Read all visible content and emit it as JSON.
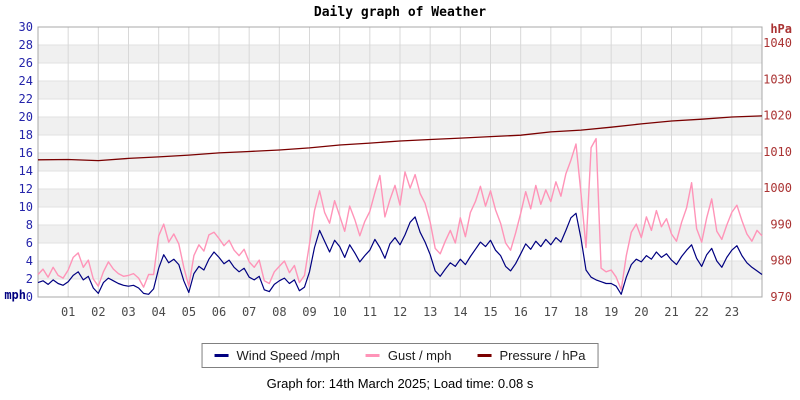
{
  "page": {
    "footer": "Graph for: 14th March 2025; Load time: 0.08 s"
  },
  "legend": {
    "items": [
      {
        "id": "wind-speed",
        "label": "Wind Speed /mph",
        "color": "#000080"
      },
      {
        "id": "gust",
        "label": "Gust / mph",
        "color": "#ff94b8"
      },
      {
        "id": "pressure",
        "label": "Pressure / hPa",
        "color": "#7a0000"
      }
    ]
  },
  "chart_data": {
    "type": "line",
    "title": "Daily graph of Weather",
    "xlabel": "",
    "x_range_hours": [
      0,
      24
    ],
    "x_tick_labels": [
      "01",
      "02",
      "03",
      "04",
      "05",
      "06",
      "07",
      "08",
      "09",
      "10",
      "11",
      "12",
      "13",
      "14",
      "15",
      "16",
      "17",
      "18",
      "19",
      "20",
      "21",
      "22",
      "23"
    ],
    "grid": true,
    "legend_position": "bottom",
    "y_left": {
      "unit": "mph",
      "lim": [
        0,
        30
      ],
      "ticks": [
        0,
        2,
        4,
        6,
        8,
        10,
        12,
        14,
        16,
        18,
        20,
        22,
        24,
        26,
        28,
        30
      ],
      "tick_color": "#2424aa"
    },
    "y_right": {
      "unit": "hPa",
      "lim": [
        970,
        1040
      ],
      "ticks": [
        970,
        980,
        990,
        1000,
        1010,
        1020,
        1030,
        1040
      ],
      "tick_color": "#aa3333"
    },
    "series": [
      {
        "name": "Wind Speed /mph",
        "axis": "left",
        "color": "#000080",
        "interval_minutes": 10,
        "values": [
          1.6,
          1.8,
          1.4,
          1.9,
          1.5,
          1.3,
          1.7,
          2.4,
          2.8,
          1.9,
          2.3,
          1.0,
          0.4,
          1.6,
          2.1,
          1.8,
          1.5,
          1.3,
          1.2,
          1.3,
          1.0,
          0.4,
          0.3,
          0.9,
          3.2,
          4.7,
          3.8,
          4.2,
          3.6,
          1.8,
          0.5,
          2.6,
          3.4,
          3.0,
          4.2,
          5.0,
          4.4,
          3.7,
          4.1,
          3.3,
          2.8,
          3.2,
          2.2,
          1.9,
          2.3,
          0.8,
          0.6,
          1.4,
          1.8,
          2.1,
          1.5,
          1.9,
          0.7,
          1.1,
          2.8,
          5.5,
          7.4,
          6.2,
          5.0,
          6.3,
          5.6,
          4.4,
          5.8,
          4.9,
          3.9,
          4.6,
          5.2,
          6.4,
          5.5,
          4.3,
          5.9,
          6.6,
          5.8,
          6.9,
          8.3,
          8.9,
          7.2,
          6.1,
          4.7,
          2.9,
          2.3,
          3.1,
          3.8,
          3.4,
          4.2,
          3.6,
          4.5,
          5.3,
          6.1,
          5.6,
          6.3,
          5.2,
          4.6,
          3.4,
          2.9,
          3.7,
          4.8,
          5.9,
          5.3,
          6.2,
          5.6,
          6.4,
          5.8,
          6.6,
          6.1,
          7.4,
          8.8,
          9.3,
          6.5,
          3.0,
          2.2,
          1.9,
          1.7,
          1.5,
          1.5,
          1.2,
          0.3,
          2.2,
          3.6,
          4.2,
          3.9,
          4.6,
          4.2,
          5.0,
          4.4,
          4.8,
          4.1,
          3.6,
          4.5,
          5.2,
          5.8,
          4.3,
          3.4,
          4.7,
          5.4,
          4.0,
          3.3,
          4.4,
          5.2,
          5.7,
          4.6,
          3.8,
          3.3,
          2.9,
          2.5
        ]
      },
      {
        "name": "Gust / mph",
        "axis": "left",
        "color": "#ff94b8",
        "interval_minutes": 10,
        "values": [
          2.5,
          3.1,
          2.2,
          3.3,
          2.4,
          2.1,
          3.0,
          4.4,
          4.9,
          3.3,
          4.1,
          2.0,
          1.2,
          2.8,
          3.9,
          3.1,
          2.6,
          2.3,
          2.4,
          2.6,
          2.1,
          1.1,
          2.5,
          2.5,
          6.8,
          8.1,
          6.1,
          7.0,
          5.9,
          3.3,
          1.2,
          4.6,
          5.8,
          5.1,
          6.9,
          7.2,
          6.5,
          5.7,
          6.3,
          5.2,
          4.6,
          5.3,
          3.9,
          3.3,
          4.1,
          1.8,
          1.5,
          2.8,
          3.4,
          4.0,
          2.7,
          3.5,
          1.6,
          2.4,
          5.9,
          9.6,
          11.8,
          9.4,
          8.2,
          10.7,
          9.0,
          7.3,
          10.1,
          8.6,
          6.8,
          8.4,
          9.5,
          11.6,
          13.5,
          8.9,
          10.8,
          12.4,
          10.2,
          13.9,
          12.1,
          13.6,
          11.5,
          10.4,
          8.3,
          5.4,
          4.8,
          6.2,
          7.4,
          6.0,
          8.8,
          6.7,
          9.4,
          10.6,
          12.3,
          10.1,
          11.8,
          9.7,
          8.2,
          6.0,
          5.2,
          7.1,
          9.3,
          11.7,
          9.8,
          12.4,
          10.3,
          11.9,
          10.6,
          12.8,
          11.2,
          13.7,
          15.2,
          17.0,
          11.5,
          5.5,
          16.6,
          17.6,
          3.2,
          2.8,
          3.0,
          2.2,
          0.8,
          4.6,
          7.2,
          8.1,
          6.6,
          8.9,
          7.4,
          9.6,
          7.8,
          8.7,
          7.0,
          6.2,
          8.3,
          9.9,
          12.7,
          7.6,
          6.1,
          8.8,
          10.9,
          7.3,
          6.4,
          8.0,
          9.4,
          10.2,
          8.5,
          7.0,
          6.2,
          7.4,
          6.8
        ]
      },
      {
        "name": "Pressure / hPa",
        "axis": "right",
        "color": "#7a0000",
        "interval_minutes": 60,
        "values": [
          1007.8,
          1007.9,
          1007.6,
          1008.2,
          1008.6,
          1009.1,
          1009.7,
          1010.1,
          1010.5,
          1011.1,
          1011.9,
          1012.4,
          1013.0,
          1013.4,
          1013.8,
          1014.2,
          1014.6,
          1015.5,
          1016.0,
          1016.8,
          1017.7,
          1018.5,
          1019.0,
          1019.6,
          1019.9
        ]
      }
    ]
  }
}
